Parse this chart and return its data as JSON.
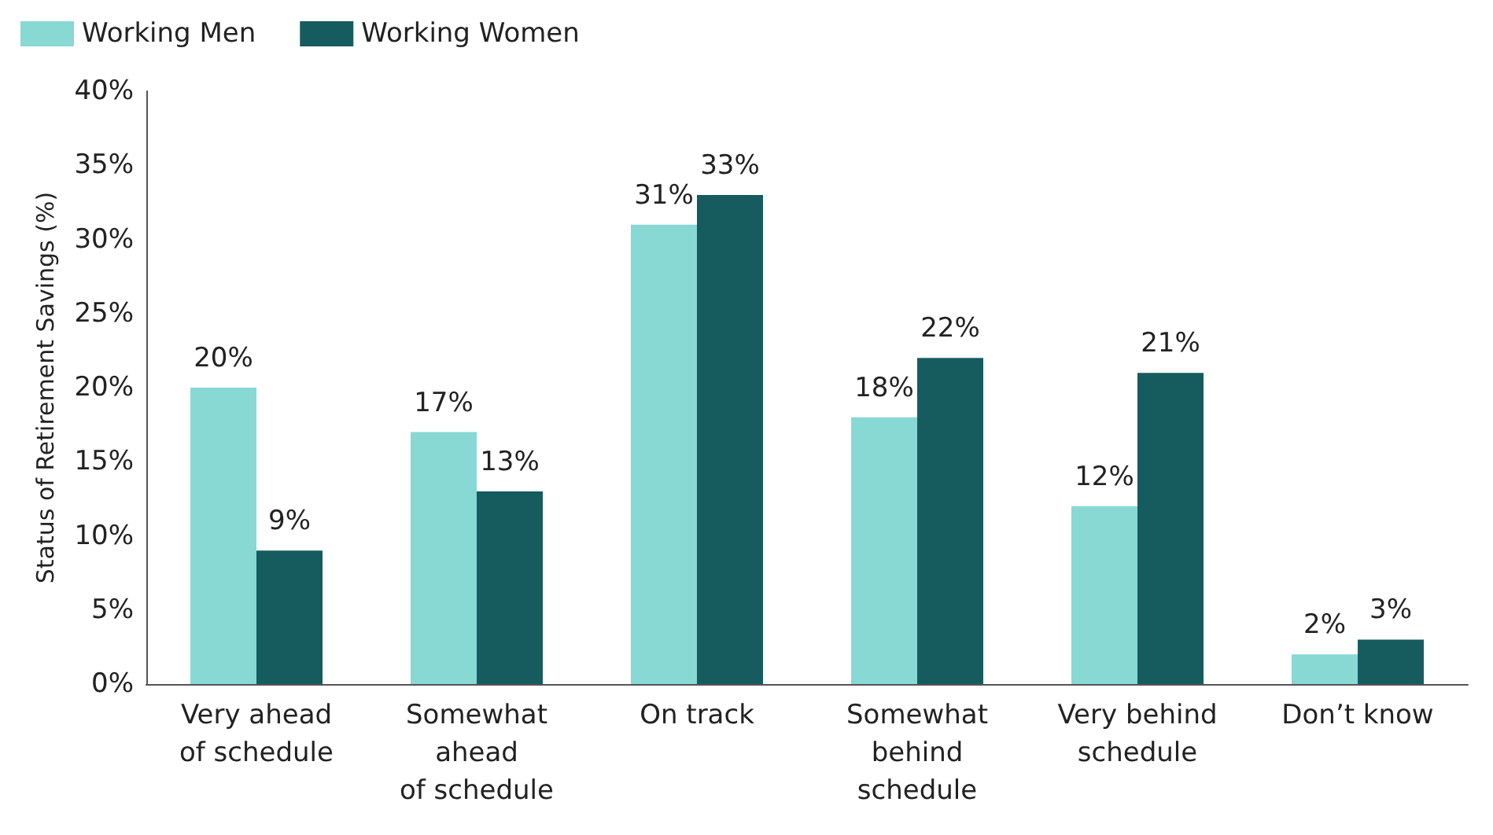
{
  "chart_data": {
    "type": "bar",
    "ylabel": "Status of Retirement Savings (%)",
    "categories": [
      "Very ahead\nof schedule",
      "Somewhat\nahead\nof schedule",
      "On track",
      "Somewhat\nbehind\nschedule",
      "Very behind\nschedule",
      "Don’t know"
    ],
    "series": [
      {
        "name": "Working Men",
        "color": "#88d8d4",
        "values": [
          20,
          17,
          31,
          18,
          12,
          2
        ],
        "value_labels": [
          "20%",
          "17%",
          "31%",
          "18%",
          "12%",
          "2%"
        ]
      },
      {
        "name": "Working Women",
        "color": "#165c5f",
        "values": [
          9,
          13,
          33,
          22,
          21,
          3
        ],
        "value_labels": [
          "9%",
          "13%",
          "33%",
          "22%",
          "21%",
          "3%"
        ]
      }
    ],
    "ylim": [
      0,
      40
    ],
    "yticks": [
      {
        "value": 0,
        "label": "0%"
      },
      {
        "value": 5,
        "label": "5%"
      },
      {
        "value": 10,
        "label": "10%"
      },
      {
        "value": 15,
        "label": "15%"
      },
      {
        "value": 20,
        "label": "20%"
      },
      {
        "value": 25,
        "label": "25%"
      },
      {
        "value": 30,
        "label": "30%"
      },
      {
        "value": 35,
        "label": "35%"
      },
      {
        "value": 40,
        "label": "40%"
      }
    ],
    "grid": false,
    "legend": "top left"
  }
}
